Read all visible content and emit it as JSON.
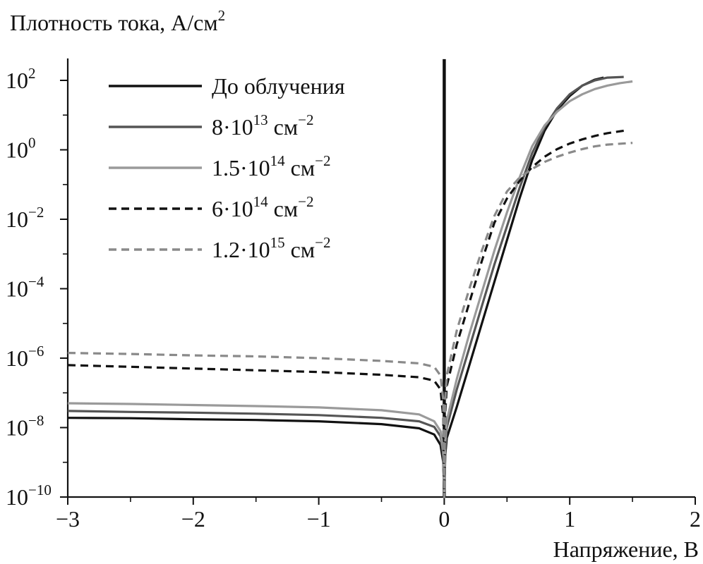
{
  "chart_data": {
    "type": "line",
    "ylabel": "Плотность тока, А/см",
    "ylabel_sup": "2",
    "xlabel": "Напряжение, В",
    "y_scale": "log10",
    "xlim": [
      -3,
      2
    ],
    "ylim_exponent": [
      -10,
      3
    ],
    "x_ticks": [
      -3,
      -2,
      -1,
      0,
      1,
      2
    ],
    "x_tick_labels": [
      "−3",
      "−2",
      "−1",
      "0",
      "1",
      "2"
    ],
    "y_ticks_exponent": [
      -10,
      -8,
      -6,
      -4,
      -2,
      0,
      2
    ],
    "y_tick_labels": [
      {
        "base": "10",
        "exp": "−10"
      },
      {
        "base": "10",
        "exp": "−8"
      },
      {
        "base": "10",
        "exp": "−6"
      },
      {
        "base": "10",
        "exp": "−4"
      },
      {
        "base": "10",
        "exp": "−2"
      },
      {
        "base": "10",
        "exp": "0"
      },
      {
        "base": "10",
        "exp": "2"
      }
    ],
    "legend_position": "top-left",
    "grid": false,
    "series": [
      {
        "name": "До облучения",
        "legend": {
          "main": "До облучения",
          "sup": "",
          "tail": ""
        },
        "color": "#111111",
        "dash": "",
        "width": 3.2,
        "spike_to_top_at_x": 0,
        "points": [
          [
            -3,
            -7.72
          ],
          [
            -2.5,
            -7.73
          ],
          [
            -2,
            -7.76
          ],
          [
            -1.5,
            -7.78
          ],
          [
            -1,
            -7.82
          ],
          [
            -0.5,
            -7.9
          ],
          [
            -0.2,
            -8.02
          ],
          [
            -0.08,
            -8.2
          ],
          [
            -0.03,
            -8.5
          ],
          [
            -0.008,
            -9.0
          ],
          [
            0,
            -10
          ],
          [
            0.008,
            -8.8
          ],
          [
            0.02,
            -8.3
          ],
          [
            0.1,
            -7.4
          ],
          [
            0.2,
            -6.2
          ],
          [
            0.3,
            -5.0
          ],
          [
            0.4,
            -3.8
          ],
          [
            0.5,
            -2.6
          ],
          [
            0.6,
            -1.4
          ],
          [
            0.7,
            -0.3
          ],
          [
            0.8,
            0.55
          ],
          [
            0.9,
            1.15
          ],
          [
            1.0,
            1.55
          ],
          [
            1.1,
            1.85
          ],
          [
            1.2,
            2.02
          ],
          [
            1.27,
            2.08
          ]
        ]
      },
      {
        "name": "8·10^13 см^-2",
        "legend": {
          "main": "8·10",
          "sup": "13",
          "tail": " см",
          "tail_sup": "−2"
        },
        "color": "#555555",
        "dash": "",
        "width": 3.2,
        "points": [
          [
            -3,
            -7.52
          ],
          [
            -2.5,
            -7.55
          ],
          [
            -2,
            -7.57
          ],
          [
            -1.5,
            -7.6
          ],
          [
            -1,
            -7.64
          ],
          [
            -0.5,
            -7.72
          ],
          [
            -0.2,
            -7.82
          ],
          [
            -0.08,
            -7.98
          ],
          [
            -0.03,
            -8.25
          ],
          [
            -0.008,
            -8.8
          ],
          [
            0,
            -10
          ],
          [
            0.008,
            -8.6
          ],
          [
            0.02,
            -8.0
          ],
          [
            0.1,
            -6.9
          ],
          [
            0.2,
            -5.7
          ],
          [
            0.3,
            -4.5
          ],
          [
            0.4,
            -3.3
          ],
          [
            0.5,
            -2.2
          ],
          [
            0.6,
            -1.1
          ],
          [
            0.7,
            -0.1
          ],
          [
            0.8,
            0.65
          ],
          [
            0.9,
            1.2
          ],
          [
            1.0,
            1.6
          ],
          [
            1.1,
            1.85
          ],
          [
            1.2,
            2.0
          ],
          [
            1.3,
            2.08
          ],
          [
            1.43,
            2.1
          ]
        ]
      },
      {
        "name": "1.5·10^14 см^-2",
        "legend": {
          "main": "1.5·10",
          "sup": "14",
          "tail": " см",
          "tail_sup": "−2"
        },
        "color": "#9a9a9a",
        "dash": "",
        "width": 3.2,
        "points": [
          [
            -3,
            -7.3
          ],
          [
            -2.5,
            -7.32
          ],
          [
            -2,
            -7.35
          ],
          [
            -1.5,
            -7.38
          ],
          [
            -1,
            -7.42
          ],
          [
            -0.5,
            -7.5
          ],
          [
            -0.2,
            -7.62
          ],
          [
            -0.08,
            -7.82
          ],
          [
            -0.03,
            -8.1
          ],
          [
            -0.008,
            -8.7
          ],
          [
            0,
            -10
          ],
          [
            0.008,
            -8.4
          ],
          [
            0.02,
            -7.8
          ],
          [
            0.1,
            -6.6
          ],
          [
            0.2,
            -5.3
          ],
          [
            0.3,
            -4.1
          ],
          [
            0.4,
            -2.9
          ],
          [
            0.5,
            -1.8
          ],
          [
            0.6,
            -0.8
          ],
          [
            0.7,
            0.1
          ],
          [
            0.8,
            0.7
          ],
          [
            0.9,
            1.1
          ],
          [
            1.0,
            1.4
          ],
          [
            1.1,
            1.6
          ],
          [
            1.2,
            1.75
          ],
          [
            1.3,
            1.85
          ],
          [
            1.4,
            1.92
          ],
          [
            1.5,
            1.97
          ]
        ]
      },
      {
        "name": "6·10^14 см^-2",
        "legend": {
          "main": "6·10",
          "sup": "14",
          "tail": " см",
          "tail_sup": "−2"
        },
        "color": "#111111",
        "dash": "11,7",
        "width": 3.2,
        "points": [
          [
            -3,
            -6.2
          ],
          [
            -2.5,
            -6.25
          ],
          [
            -2,
            -6.3
          ],
          [
            -1.5,
            -6.35
          ],
          [
            -1,
            -6.4
          ],
          [
            -0.5,
            -6.48
          ],
          [
            -0.2,
            -6.55
          ],
          [
            -0.08,
            -6.65
          ],
          [
            -0.03,
            -6.9
          ],
          [
            -0.008,
            -7.7
          ],
          [
            0,
            -10
          ],
          [
            0.008,
            -7.6
          ],
          [
            0.02,
            -6.8
          ],
          [
            0.1,
            -5.6
          ],
          [
            0.2,
            -4.4
          ],
          [
            0.3,
            -3.2
          ],
          [
            0.4,
            -2.1
          ],
          [
            0.5,
            -1.4
          ],
          [
            0.6,
            -0.9
          ],
          [
            0.7,
            -0.5
          ],
          [
            0.8,
            -0.2
          ],
          [
            0.9,
            0.02
          ],
          [
            1.0,
            0.18
          ],
          [
            1.1,
            0.3
          ],
          [
            1.2,
            0.4
          ],
          [
            1.3,
            0.48
          ],
          [
            1.43,
            0.55
          ]
        ]
      },
      {
        "name": "1.2·10^15 см^-2",
        "legend": {
          "main": "1.2·10",
          "sup": "15",
          "tail": " см",
          "tail_sup": "−2"
        },
        "color": "#8a8a8a",
        "dash": "11,7",
        "width": 3.2,
        "points": [
          [
            -3,
            -5.85
          ],
          [
            -2.5,
            -5.88
          ],
          [
            -2,
            -5.92
          ],
          [
            -1.5,
            -5.95
          ],
          [
            -1,
            -6.0
          ],
          [
            -0.5,
            -6.08
          ],
          [
            -0.2,
            -6.15
          ],
          [
            -0.08,
            -6.25
          ],
          [
            -0.03,
            -6.5
          ],
          [
            -0.008,
            -7.2
          ],
          [
            0,
            -10
          ],
          [
            0.008,
            -7.2
          ],
          [
            0.02,
            -6.5
          ],
          [
            0.1,
            -5.2
          ],
          [
            0.2,
            -4.0
          ],
          [
            0.3,
            -2.9
          ],
          [
            0.4,
            -1.9
          ],
          [
            0.5,
            -1.2
          ],
          [
            0.6,
            -0.8
          ],
          [
            0.7,
            -0.55
          ],
          [
            0.8,
            -0.35
          ],
          [
            0.9,
            -0.2
          ],
          [
            1.0,
            -0.08
          ],
          [
            1.1,
            0.02
          ],
          [
            1.2,
            0.1
          ],
          [
            1.3,
            0.15
          ],
          [
            1.5,
            0.2
          ]
        ]
      }
    ]
  }
}
